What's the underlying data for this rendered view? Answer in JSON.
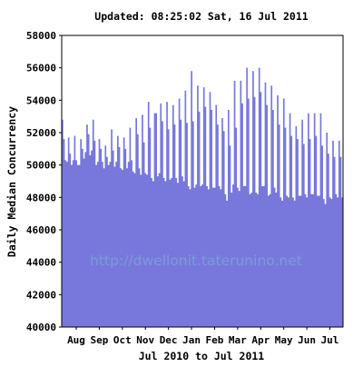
{
  "chart_data": {
    "type": "area",
    "title": "Updated: 08:25:02 Sat, 16 Jul 2011",
    "ylabel": "Daily Median Concurrency",
    "xlabel": "Jul 2010 to Jul 2011",
    "ylim": [
      40000,
      58000
    ],
    "yticks": [
      40000,
      42000,
      44000,
      46000,
      48000,
      50000,
      52000,
      54000,
      56000,
      58000
    ],
    "xticks": [
      "Aug",
      "Sep",
      "Oct",
      "Nov",
      "Dec",
      "Jan",
      "Feb",
      "Mar",
      "Apr",
      "May",
      "Jun",
      "Jul"
    ],
    "grid": false,
    "watermark": "http://dwellonit.taterunino.net",
    "fill_color": "#7878dc",
    "series": [
      {
        "values": [
          52800,
          51600,
          50300,
          50200,
          51700,
          50700,
          50000,
          50300,
          51800,
          50300,
          50000,
          50000,
          51600,
          51000,
          50400,
          50800,
          52500,
          51900,
          50600,
          50900,
          52800,
          51500,
          50000,
          50200,
          51600,
          51000,
          50200,
          49800,
          51200,
          50500,
          50000,
          50200,
          52200,
          50900,
          49900,
          50200,
          51800,
          51100,
          49800,
          49700,
          51700,
          51000,
          49800,
          50200,
          52300,
          50300,
          49600,
          49500,
          52900,
          51900,
          49800,
          49400,
          53100,
          51400,
          49500,
          49400,
          53900,
          52300,
          49200,
          49000,
          53200,
          53200,
          49300,
          49500,
          53800,
          52700,
          49200,
          49000,
          53900,
          52200,
          49100,
          49200,
          53700,
          52500,
          49200,
          48900,
          54100,
          52800,
          49300,
          49000,
          54600,
          52600,
          48700,
          48500,
          55800,
          52700,
          48600,
          48800,
          54900,
          53300,
          48700,
          48800,
          54800,
          53600,
          48700,
          48500,
          54500,
          53400,
          48600,
          48600,
          53700,
          52500,
          48700,
          48500,
          52900,
          52100,
          48200,
          47800,
          53400,
          51200,
          48300,
          48800,
          55200,
          52300,
          48600,
          48400,
          55200,
          53800,
          48700,
          48700,
          56000,
          54100,
          48200,
          48300,
          55800,
          54200,
          48300,
          48200,
          56000,
          54500,
          48700,
          48700,
          55100,
          53700,
          48100,
          48200,
          54900,
          53400,
          48600,
          48300,
          54300,
          52500,
          48000,
          47800,
          54100,
          52300,
          48100,
          48000,
          53200,
          51800,
          48000,
          47800,
          52400,
          51600,
          48100,
          48100,
          52800,
          51300,
          48200,
          48000,
          53200,
          51600,
          48200,
          48200,
          53200,
          51800,
          48100,
          48100,
          53200,
          51200,
          47900,
          47600,
          52000,
          50700,
          48000,
          47900,
          51500,
          50500,
          48200,
          48000,
          51500,
          50500,
          48000
        ]
      }
    ]
  }
}
